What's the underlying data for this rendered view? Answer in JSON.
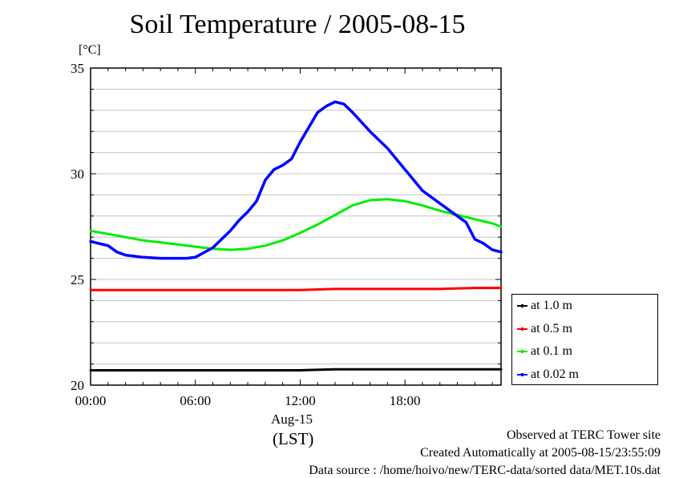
{
  "title": "Soil Temperature / 2005-08-15",
  "unit_label": "[°C]",
  "footer": {
    "observed": "Observed at TERC Tower site",
    "created": "Created Automatically at 2005-08-15/23:55:09",
    "source": "Data source : /home/hoivo/new/TERC-data/sorted  data/MET.10s.dat"
  },
  "axis": {
    "date_label": "Aug-15",
    "tz_label": "(LST)"
  },
  "chart_data": {
    "type": "line",
    "title": "Soil Temperature / 2005-08-15",
    "ylabel": "[°C]",
    "xlabel": "(LST)",
    "xlim": [
      0,
      23.5
    ],
    "ylim": [
      20,
      35
    ],
    "x_ticks": [
      {
        "value": 0,
        "label": "00:00"
      },
      {
        "value": 6,
        "label": "06:00"
      },
      {
        "value": 12,
        "label": "12:00"
      },
      {
        "value": 18,
        "label": "18:00"
      }
    ],
    "y_ticks": [
      {
        "value": 20,
        "label": "20"
      },
      {
        "value": 25,
        "label": "25"
      },
      {
        "value": 30,
        "label": "30"
      },
      {
        "value": 35,
        "label": "35"
      }
    ],
    "grid": true,
    "legend_position": "right",
    "series": [
      {
        "name": "at 1.0 m",
        "color": "#000000",
        "x": [
          0,
          2,
          4,
          6,
          8,
          10,
          12,
          14,
          16,
          18,
          20,
          22,
          23.5
        ],
        "y": [
          20.7,
          20.7,
          20.7,
          20.7,
          20.7,
          20.7,
          20.7,
          20.75,
          20.75,
          20.75,
          20.75,
          20.75,
          20.75
        ]
      },
      {
        "name": "at 0.5 m",
        "color": "#ff0000",
        "x": [
          0,
          2,
          4,
          6,
          8,
          10,
          12,
          14,
          16,
          18,
          20,
          22,
          23.5
        ],
        "y": [
          24.5,
          24.5,
          24.5,
          24.5,
          24.5,
          24.5,
          24.5,
          24.55,
          24.55,
          24.55,
          24.55,
          24.6,
          24.6
        ]
      },
      {
        "name": "at 0.1 m",
        "color": "#00ee00",
        "x": [
          0,
          1,
          2,
          3,
          4,
          5,
          6,
          7,
          8,
          9,
          10,
          11,
          12,
          13,
          14,
          15,
          16,
          17,
          18,
          19,
          20,
          21,
          22,
          23,
          23.5
        ],
        "y": [
          27.3,
          27.15,
          27.0,
          26.85,
          26.75,
          26.65,
          26.55,
          26.45,
          26.4,
          26.45,
          26.6,
          26.85,
          27.2,
          27.6,
          28.05,
          28.5,
          28.75,
          28.8,
          28.7,
          28.5,
          28.25,
          28.05,
          27.85,
          27.65,
          27.5
        ]
      },
      {
        "name": "at 0.02 m",
        "color": "#0000ff",
        "x": [
          0,
          1,
          1.5,
          2,
          3,
          4,
          5,
          5.5,
          6,
          7,
          8,
          8.5,
          9,
          9.5,
          10,
          10.5,
          11,
          11.5,
          12,
          12.5,
          13,
          13.5,
          14,
          14.5,
          15,
          16,
          17,
          18,
          19,
          20,
          20.5,
          21,
          21.5,
          22,
          22.5,
          23,
          23.5
        ],
        "y": [
          26.8,
          26.6,
          26.3,
          26.15,
          26.05,
          26.0,
          26.0,
          26.0,
          26.05,
          26.5,
          27.3,
          27.8,
          28.2,
          28.7,
          29.7,
          30.2,
          30.4,
          30.7,
          31.5,
          32.2,
          32.9,
          33.2,
          33.4,
          33.3,
          32.9,
          32.0,
          31.2,
          30.2,
          29.2,
          28.6,
          28.3,
          28.0,
          27.7,
          26.9,
          26.7,
          26.4,
          26.3
        ]
      }
    ]
  },
  "legend_labels": [
    "at 1.0 m",
    "at 0.5 m",
    "at 0.1 m",
    "at 0.02 m"
  ]
}
